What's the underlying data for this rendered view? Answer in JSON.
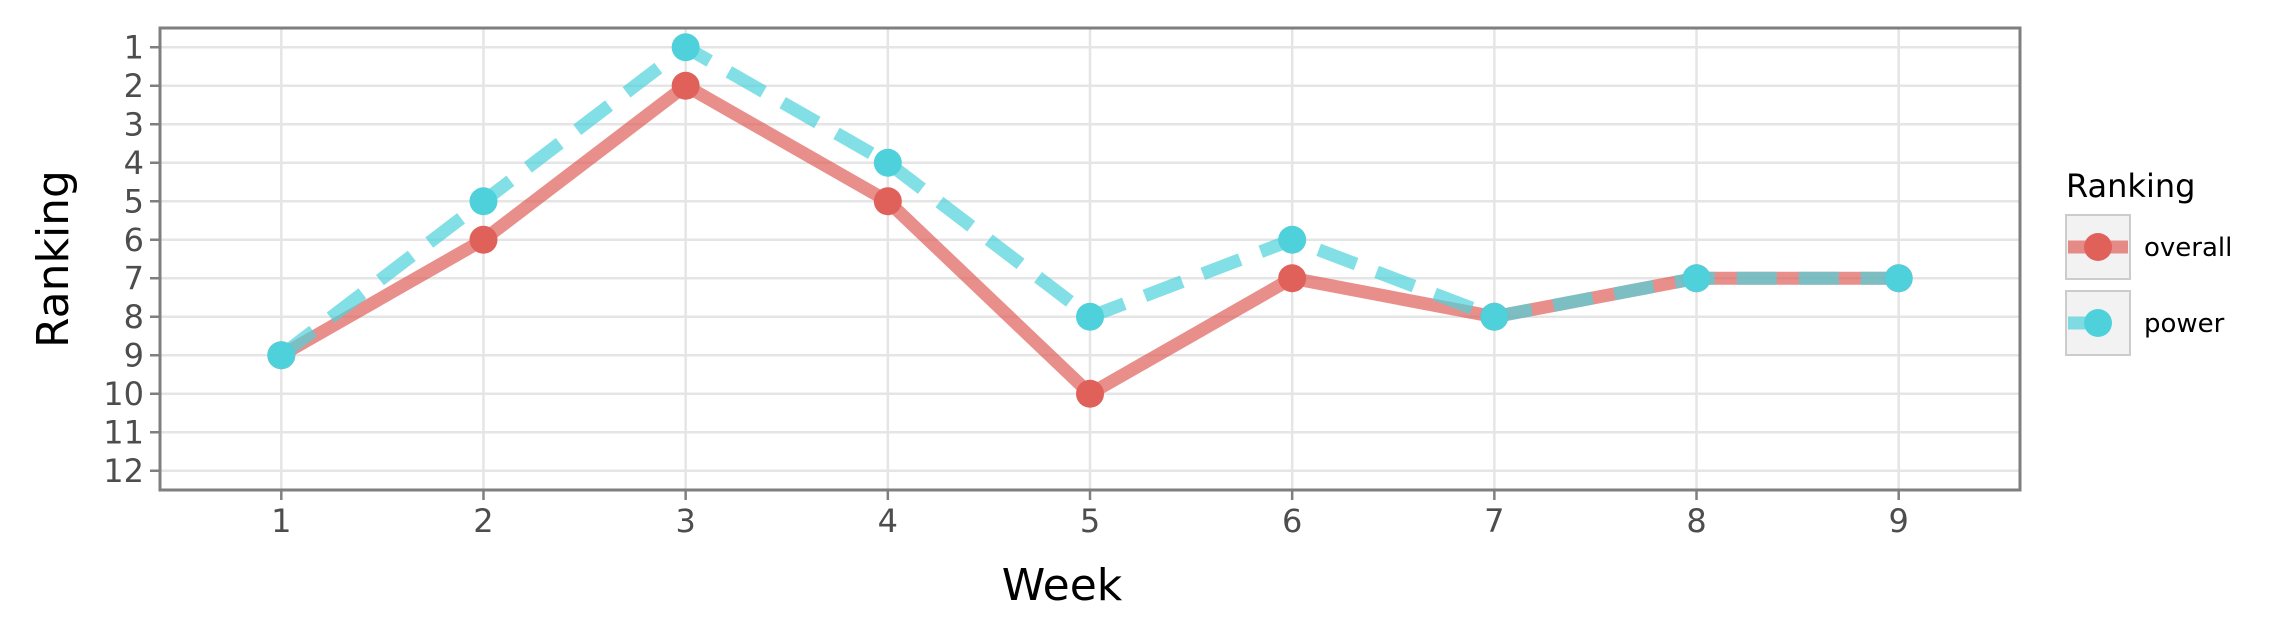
{
  "chart_data": {
    "type": "line",
    "title": "",
    "xlabel": "Week",
    "ylabel": "Ranking",
    "x": [
      1,
      2,
      3,
      4,
      5,
      6,
      7,
      8,
      9
    ],
    "x_ticks": [
      "1",
      "2",
      "3",
      "4",
      "5",
      "6",
      "7",
      "8",
      "9"
    ],
    "xlim": [
      0.4,
      9.6
    ],
    "y_ticks": [
      "1",
      "2",
      "3",
      "4",
      "5",
      "6",
      "7",
      "8",
      "9",
      "10",
      "11",
      "12"
    ],
    "ylim": [
      12.5,
      0.5
    ],
    "y_reversed": true,
    "grid": true,
    "legend_title": "Ranking",
    "legend_position": "right",
    "series": [
      {
        "name": "overall",
        "values": [
          9,
          6,
          2,
          5,
          10,
          7,
          8,
          7,
          7
        ],
        "color": "#E0605A",
        "line_style": "solid"
      },
      {
        "name": "power",
        "values": [
          9,
          5,
          1,
          4,
          8,
          6,
          8,
          7,
          7
        ],
        "color": "#4FD1DC",
        "line_style": "dashed"
      }
    ]
  }
}
